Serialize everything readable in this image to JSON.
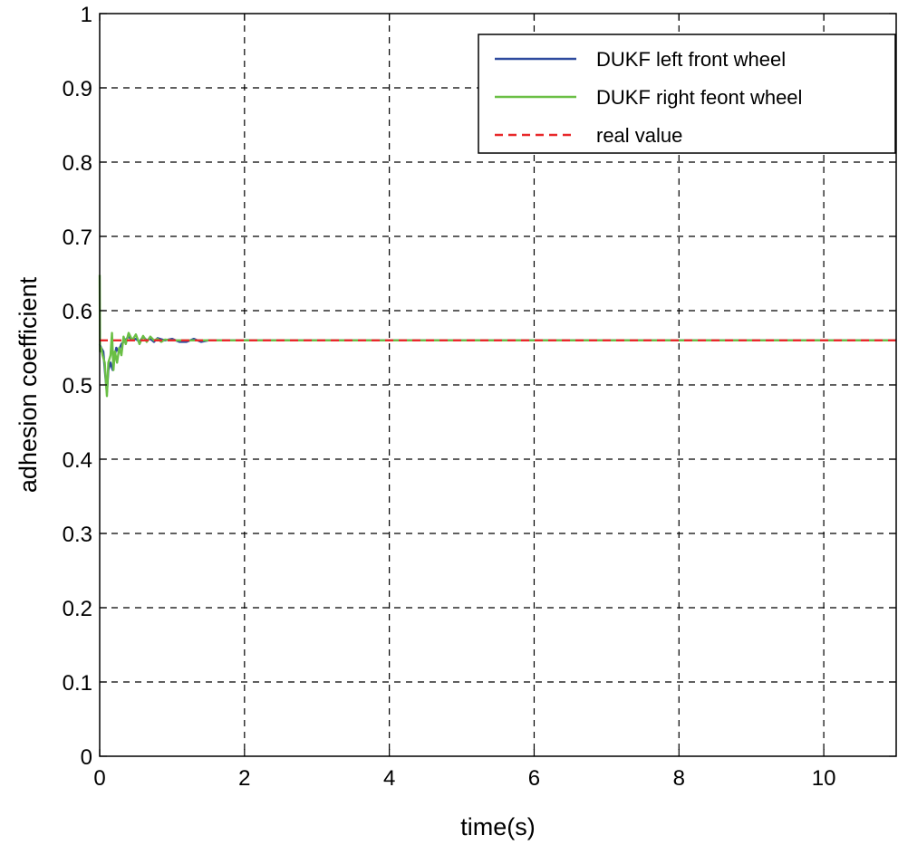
{
  "chart_data": {
    "type": "line",
    "title": "",
    "xlabel": "time(s)",
    "ylabel": "adhesion coefficient",
    "xlim": [
      0,
      11
    ],
    "ylim": [
      0,
      1
    ],
    "xticks": [
      0,
      2,
      4,
      6,
      8,
      10
    ],
    "xtick_labels": [
      "0",
      "2",
      "4",
      "6",
      "8",
      "10"
    ],
    "yticks": [
      0,
      0.1,
      0.2,
      0.3,
      0.4,
      0.5,
      0.6,
      0.7,
      0.8,
      0.9,
      1
    ],
    "ytick_labels": [
      "0",
      "0.1",
      "0.2",
      "0.3",
      "0.4",
      "0.5",
      "0.6",
      "0.7",
      "0.8",
      "0.9",
      "1"
    ],
    "grid": true,
    "legend_position": "top-right",
    "series": [
      {
        "name": "DUKF left front wheel",
        "color": "#2e4a9e",
        "dash": "solid",
        "x": [
          0,
          0.02,
          0.05,
          0.08,
          0.1,
          0.12,
          0.15,
          0.18,
          0.2,
          0.23,
          0.26,
          0.3,
          0.35,
          0.4,
          0.45,
          0.5,
          0.55,
          0.6,
          0.65,
          0.7,
          0.75,
          0.8,
          0.9,
          1.0,
          1.1,
          1.2,
          1.3,
          1.4,
          1.5,
          2,
          4,
          6,
          8,
          10,
          11
        ],
        "y": [
          0.555,
          0.55,
          0.545,
          0.51,
          0.49,
          0.52,
          0.53,
          0.52,
          0.535,
          0.55,
          0.545,
          0.555,
          0.56,
          0.565,
          0.56,
          0.562,
          0.558,
          0.565,
          0.56,
          0.562,
          0.558,
          0.563,
          0.56,
          0.562,
          0.558,
          0.558,
          0.562,
          0.558,
          0.56,
          0.56,
          0.56,
          0.56,
          0.56,
          0.56,
          0.56
        ]
      },
      {
        "name": "DUKF right feont wheel",
        "color": "#6abf45",
        "dash": "solid",
        "x": [
          0,
          0.005,
          0.02,
          0.04,
          0.07,
          0.1,
          0.12,
          0.15,
          0.17,
          0.19,
          0.21,
          0.24,
          0.27,
          0.3,
          0.33,
          0.36,
          0.4,
          0.45,
          0.5,
          0.55,
          0.6,
          0.65,
          0.7,
          0.75,
          0.8,
          0.85,
          0.9,
          1.0,
          1.2,
          1.5,
          2,
          4,
          6,
          8,
          10,
          11
        ],
        "y": [
          0.648,
          0.545,
          0.55,
          0.54,
          0.53,
          0.485,
          0.53,
          0.54,
          0.57,
          0.52,
          0.545,
          0.53,
          0.55,
          0.54,
          0.565,
          0.555,
          0.57,
          0.56,
          0.568,
          0.555,
          0.566,
          0.558,
          0.565,
          0.56,
          0.562,
          0.558,
          0.561,
          0.56,
          0.56,
          0.56,
          0.56,
          0.56,
          0.56,
          0.56,
          0.56,
          0.56
        ]
      },
      {
        "name": "real value",
        "color": "#e8292b",
        "dash": "dashed",
        "x": [
          0,
          11
        ],
        "y": [
          0.56,
          0.56
        ]
      }
    ]
  }
}
